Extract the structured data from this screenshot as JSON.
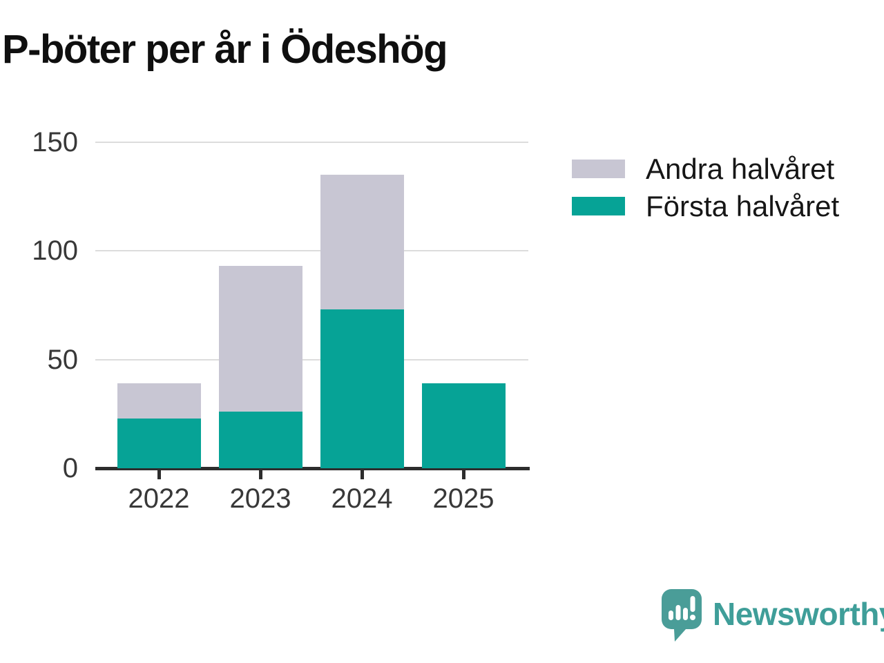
{
  "chart_data": {
    "type": "bar",
    "stacked": true,
    "title": "P-böter per år i Ödeshög",
    "categories": [
      "2022",
      "2023",
      "2024",
      "2025"
    ],
    "series": [
      {
        "name": "Första halvåret",
        "color": "#06a396",
        "values": [
          23,
          26,
          73,
          39
        ]
      },
      {
        "name": "Andra halvåret",
        "color": "#c8c6d3",
        "values": [
          16,
          67,
          62,
          0
        ]
      }
    ],
    "ylim": [
      0,
      150
    ],
    "yticks": [
      0,
      50,
      100,
      150
    ],
    "xlabel": "",
    "ylabel": "",
    "grid": true,
    "legend_position": "right-top",
    "legend_order": [
      "Andra halvåret",
      "Första halvåret"
    ]
  },
  "colors": {
    "background": "#ffffff",
    "grid": "#dcdcdc",
    "axis": "#2d2d2d",
    "axis_label_text": "#383838",
    "title_text": "#0f0f0f",
    "legend_text": "#161616"
  },
  "logo": {
    "text": "Newsworthy",
    "icon": "speech-bubble-bar-chart-exclamation",
    "mark_color": "#4a9d98",
    "text_color": "#3f9e99"
  }
}
